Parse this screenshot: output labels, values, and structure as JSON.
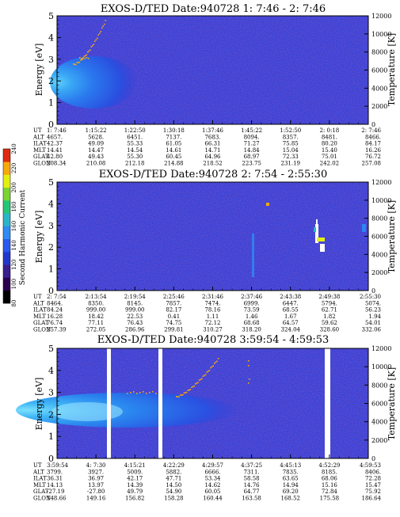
{
  "colorbar": {
    "title": "Second Harmonic Current",
    "ticks": [
      "80",
      "100",
      "120",
      "140",
      "160",
      "180",
      "200",
      "220",
      "240"
    ],
    "colors": [
      "#000000",
      "#2a0050",
      "#3a1f8f",
      "#2438cc",
      "#2a5af0",
      "#2e8cf2",
      "#2ab6c8",
      "#25c777",
      "#7bd432",
      "#e3ef12",
      "#f7a80a",
      "#e02a10"
    ]
  },
  "orbit_row_labels": [
    "UT",
    "ALT",
    "ILAT",
    "MLT",
    "GLAT",
    "GLON"
  ],
  "chart_data": [
    {
      "type": "heatmap",
      "title": "EXOS-D/TED    Date:940728   1: 7:46 - 2: 7:46",
      "ylabel": "Energy [eV]",
      "ylabel_right": "Temperature [K]",
      "ylim": [
        0,
        5
      ],
      "ylim_right": [
        0,
        12000
      ],
      "yticks": [
        "0",
        "1",
        "2",
        "3",
        "4",
        "5"
      ],
      "yticks_right": [
        "0",
        "2000",
        "4000",
        "6000",
        "8000",
        "10000",
        "12000"
      ],
      "orbit": {
        "UT": [
          "1: 7:46",
          "1:15:22",
          "1:22:50",
          "1:30:18",
          "1:37:46",
          "1:45:22",
          "1:52:50",
          "2: 0:18",
          "2: 7:46"
        ],
        "ALT": [
          "4657.",
          "5628.",
          "6451.",
          "7137.",
          "7683.",
          "8094.",
          "8357.",
          "8481.",
          "8466."
        ],
        "ILAT": [
          "42.37",
          "49.09",
          "55.33",
          "61.05",
          "66.31",
          "71.27",
          "75.85",
          "80.20",
          "84.17"
        ],
        "MLT": [
          "14.41",
          "14.47",
          "14.54",
          "14.61",
          "14.71",
          "14.84",
          "15.04",
          "15.40",
          "16.26"
        ],
        "GLAT": [
          "42.80",
          "49.43",
          "55.30",
          "60.45",
          "64.96",
          "68.97",
          "72.33",
          "75.01",
          "76.72"
        ],
        "GLON": [
          "208.34",
          "210.08",
          "212.18",
          "214.88",
          "218.52",
          "223.75",
          "231.19",
          "242.02",
          "257.08"
        ]
      }
    },
    {
      "type": "heatmap",
      "title": "EXOS-D/TED    Date:940728   2: 7:54 - 2:55:30",
      "ylabel": "Energy [eV]",
      "ylabel_right": "Temperature [K]",
      "ylim": [
        0,
        5
      ],
      "ylim_right": [
        0,
        12000
      ],
      "yticks": [
        "0",
        "1",
        "2",
        "3",
        "4",
        "5"
      ],
      "yticks_right": [
        "0",
        "2000",
        "4000",
        "6000",
        "8000",
        "10000",
        "12000"
      ],
      "orbit": {
        "UT": [
          "2: 7:54",
          "2:13:54",
          "2:19:54",
          "2:25:46",
          "2:31:46",
          "2:37:46",
          "2:43:38",
          "2:49:38",
          "2:55:30"
        ],
        "ALT": [
          "8464.",
          "8350.",
          "8145.",
          "7857.",
          "7474.",
          "6999.",
          "6447.",
          "5794.",
          "5074."
        ],
        "ILAT": [
          "84.24",
          "999.00",
          "999.00",
          "82.17",
          "78.16",
          "73.59",
          "68.55",
          "62.71",
          "56.23"
        ],
        "MLT": [
          "16.28",
          "18.42",
          "22.53",
          "0.41",
          "1.11",
          "1.46",
          "1.67",
          "1.82",
          "1.94"
        ],
        "GLAT": [
          "76.74",
          "77.11",
          "76.43",
          "74.75",
          "72.12",
          "68.68",
          "64.57",
          "59.62",
          "54.01"
        ],
        "GLON": [
          "257.39",
          "272.05",
          "286.96",
          "299.81",
          "310.27",
          "318.20",
          "324.04",
          "328.60",
          "332.06"
        ]
      }
    },
    {
      "type": "heatmap",
      "title": "EXOS-D/TED    Date:940728   3:59:54 - 4:59:53",
      "ylabel": "Energy [eV]",
      "ylabel_right": "Temperature [K]",
      "ylim": [
        0,
        5
      ],
      "ylim_right": [
        0,
        12000
      ],
      "yticks": [
        "0",
        "1",
        "2",
        "3",
        "4",
        "5"
      ],
      "yticks_right": [
        "0",
        "2000",
        "4000",
        "6000",
        "8000",
        "10000",
        "12000"
      ],
      "orbit": {
        "UT": [
          "3:59:54",
          "4: 7:30",
          "4:15:21",
          "4:22:29",
          "4:29:57",
          "4:37:25",
          "4:45:13",
          "4:52:29",
          "4:59:53"
        ],
        "ALT": [
          "3799.",
          "3927.",
          "5009.",
          "5882.",
          "6666.",
          "7311.",
          "7835.",
          "8185.",
          "8406."
        ],
        "ILAT": [
          "36.31",
          "36.97",
          "42.17",
          "47.71",
          "53.34",
          "58.58",
          "63.65",
          "68.06",
          "72.28"
        ],
        "MLT": [
          "14.13",
          "13.97",
          "14.39",
          "14.50",
          "14.62",
          "14.76",
          "14.94",
          "15.16",
          "15.47"
        ],
        "GLAT": [
          "-27.19",
          "-27.80",
          "49.79",
          "54.90",
          "60.05",
          "64.77",
          "69.20",
          "72.84",
          "75.92"
        ],
        "GLON": [
          "148.66",
          "149.16",
          "156.82",
          "158.28",
          "160.44",
          "163.58",
          "168.52",
          "175.58",
          "186.64"
        ]
      }
    }
  ]
}
